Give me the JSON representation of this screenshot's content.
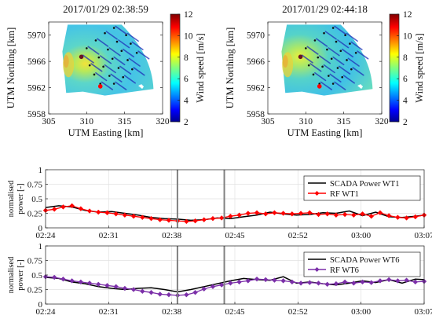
{
  "colors": {
    "scada": "#000000",
    "rf_wt1": "#ff0000",
    "rf_wt6": "#7b2fa8",
    "event_line": "#808080",
    "colormap": "jet"
  },
  "chart_data": [
    {
      "type": "heatmap",
      "title": "2017/01/29 02:38:59",
      "xlabel": "UTM Easting [km]",
      "ylabel": "UTM Northing [km]",
      "xticks": [
        "305",
        "310",
        "315",
        "320"
      ],
      "yticks": [
        "5958",
        "5962",
        "5966",
        "5970"
      ],
      "xlim": [
        305,
        320
      ],
      "ylim": [
        5958,
        5972
      ],
      "colorbar": {
        "label": "Wind speed [m/s]",
        "ticks": [
          "2",
          "4",
          "6",
          "8",
          "10",
          "12"
        ],
        "range": [
          2,
          12
        ]
      },
      "turbines_highlighted": [
        {
          "x": 309.3,
          "y": 5966.7,
          "color": "#6b1520"
        },
        {
          "x": 311.8,
          "y": 5962.2,
          "color": "#ff0000"
        }
      ]
    },
    {
      "type": "heatmap",
      "title": "2017/01/29 02:44:18",
      "xlabel": "UTM Easting [km]",
      "ylabel": "UTM Northing [km]",
      "xticks": [
        "305",
        "310",
        "315",
        "320"
      ],
      "yticks": [
        "5958",
        "5962",
        "5966",
        "5970"
      ],
      "xlim": [
        305,
        320
      ],
      "ylim": [
        5958,
        5972
      ],
      "colorbar": {
        "label": "Wind speed [m/s]",
        "ticks": [
          "2",
          "4",
          "6",
          "8",
          "10",
          "12"
        ],
        "range": [
          2,
          12
        ]
      },
      "turbines_highlighted": [
        {
          "x": 309.3,
          "y": 5966.7,
          "color": "#6b1520"
        },
        {
          "x": 311.8,
          "y": 5962.2,
          "color": "#ff0000"
        }
      ]
    },
    {
      "type": "line",
      "ylabel": "normalised power [-]",
      "xticks": [
        "02:24",
        "02:31",
        "02:38",
        "02:45",
        "02:52",
        "03:00",
        "03:07"
      ],
      "yticks": [
        "0",
        "0.25",
        "0.5",
        "0.75",
        "1"
      ],
      "xlim": [
        0,
        43
      ],
      "ylim": [
        0,
        1
      ],
      "grid": true,
      "legend_position": "top-right",
      "event_lines": [
        14.98,
        20.3
      ],
      "series": [
        {
          "name": "SCADA Power WT1",
          "x": [
            0,
            1.5,
            3,
            4.5,
            6,
            7.5,
            9,
            10.5,
            12,
            13.5,
            15,
            16.5,
            18,
            19.5,
            21,
            22.5,
            24,
            25.5,
            27,
            28.5,
            30,
            31.5,
            33,
            34.5,
            36,
            37.5,
            39,
            40.5,
            42,
            43
          ],
          "y": [
            0.35,
            0.38,
            0.36,
            0.3,
            0.27,
            0.28,
            0.25,
            0.22,
            0.18,
            0.16,
            0.15,
            0.13,
            0.14,
            0.17,
            0.16,
            0.19,
            0.22,
            0.27,
            0.24,
            0.22,
            0.23,
            0.26,
            0.25,
            0.29,
            0.21,
            0.27,
            0.19,
            0.18,
            0.2,
            0.22
          ]
        },
        {
          "name": "RF WT1",
          "x": [
            0,
            1,
            2,
            3,
            4,
            5,
            6,
            7,
            8,
            9,
            10,
            11,
            12,
            13,
            14,
            15,
            16,
            17,
            18,
            19,
            20,
            21,
            22,
            23,
            24,
            25,
            26,
            27,
            28,
            29,
            30,
            31,
            32,
            33,
            34,
            35,
            36,
            37,
            38,
            39,
            40,
            41,
            42,
            43
          ],
          "y": [
            0.3,
            0.32,
            0.36,
            0.38,
            0.33,
            0.29,
            0.27,
            0.26,
            0.24,
            0.22,
            0.2,
            0.18,
            0.16,
            0.14,
            0.13,
            0.12,
            0.11,
            0.12,
            0.14,
            0.16,
            0.17,
            0.2,
            0.22,
            0.25,
            0.26,
            0.24,
            0.26,
            0.25,
            0.24,
            0.25,
            0.26,
            0.23,
            0.24,
            0.22,
            0.23,
            0.22,
            0.24,
            0.2,
            0.26,
            0.21,
            0.18,
            0.17,
            0.19,
            0.22
          ]
        }
      ]
    },
    {
      "type": "line",
      "ylabel": "normalised power [-]",
      "xticks": [
        "02:24",
        "02:31",
        "02:38",
        "02:45",
        "02:52",
        "03:00",
        "03:07"
      ],
      "yticks": [
        "0",
        "0.25",
        "0.5",
        "0.75",
        "1"
      ],
      "xlim": [
        0,
        43
      ],
      "ylim": [
        0,
        1
      ],
      "grid": true,
      "legend_position": "top-right",
      "event_lines": [
        14.98,
        20.3
      ],
      "series": [
        {
          "name": "SCADA Power WT6",
          "x": [
            0,
            1.5,
            3,
            4.5,
            6,
            7.5,
            9,
            10.5,
            12,
            13.5,
            15,
            16.5,
            18,
            19.5,
            21,
            22.5,
            24,
            25.5,
            27,
            28.5,
            30,
            31.5,
            33,
            34.5,
            36,
            37.5,
            39,
            40.5,
            42,
            43
          ],
          "y": [
            0.46,
            0.44,
            0.38,
            0.35,
            0.3,
            0.27,
            0.25,
            0.27,
            0.28,
            0.25,
            0.21,
            0.25,
            0.3,
            0.35,
            0.4,
            0.44,
            0.42,
            0.41,
            0.47,
            0.36,
            0.38,
            0.35,
            0.33,
            0.36,
            0.4,
            0.37,
            0.42,
            0.36,
            0.43,
            0.42
          ]
        },
        {
          "name": "RF WT6",
          "x": [
            0,
            1,
            2,
            3,
            4,
            5,
            6,
            7,
            8,
            9,
            10,
            11,
            12,
            13,
            14,
            15,
            16,
            17,
            18,
            19,
            20,
            21,
            22,
            23,
            24,
            25,
            26,
            27,
            28,
            29,
            30,
            31,
            32,
            33,
            34,
            35,
            36,
            37,
            38,
            39,
            40,
            41,
            42,
            43
          ],
          "y": [
            0.47,
            0.46,
            0.43,
            0.4,
            0.38,
            0.36,
            0.34,
            0.32,
            0.3,
            0.27,
            0.25,
            0.22,
            0.2,
            0.17,
            0.16,
            0.15,
            0.16,
            0.2,
            0.26,
            0.3,
            0.33,
            0.36,
            0.38,
            0.4,
            0.43,
            0.42,
            0.41,
            0.4,
            0.38,
            0.36,
            0.37,
            0.36,
            0.34,
            0.35,
            0.38,
            0.36,
            0.38,
            0.37,
            0.4,
            0.42,
            0.4,
            0.41,
            0.38,
            0.39
          ]
        }
      ]
    }
  ]
}
